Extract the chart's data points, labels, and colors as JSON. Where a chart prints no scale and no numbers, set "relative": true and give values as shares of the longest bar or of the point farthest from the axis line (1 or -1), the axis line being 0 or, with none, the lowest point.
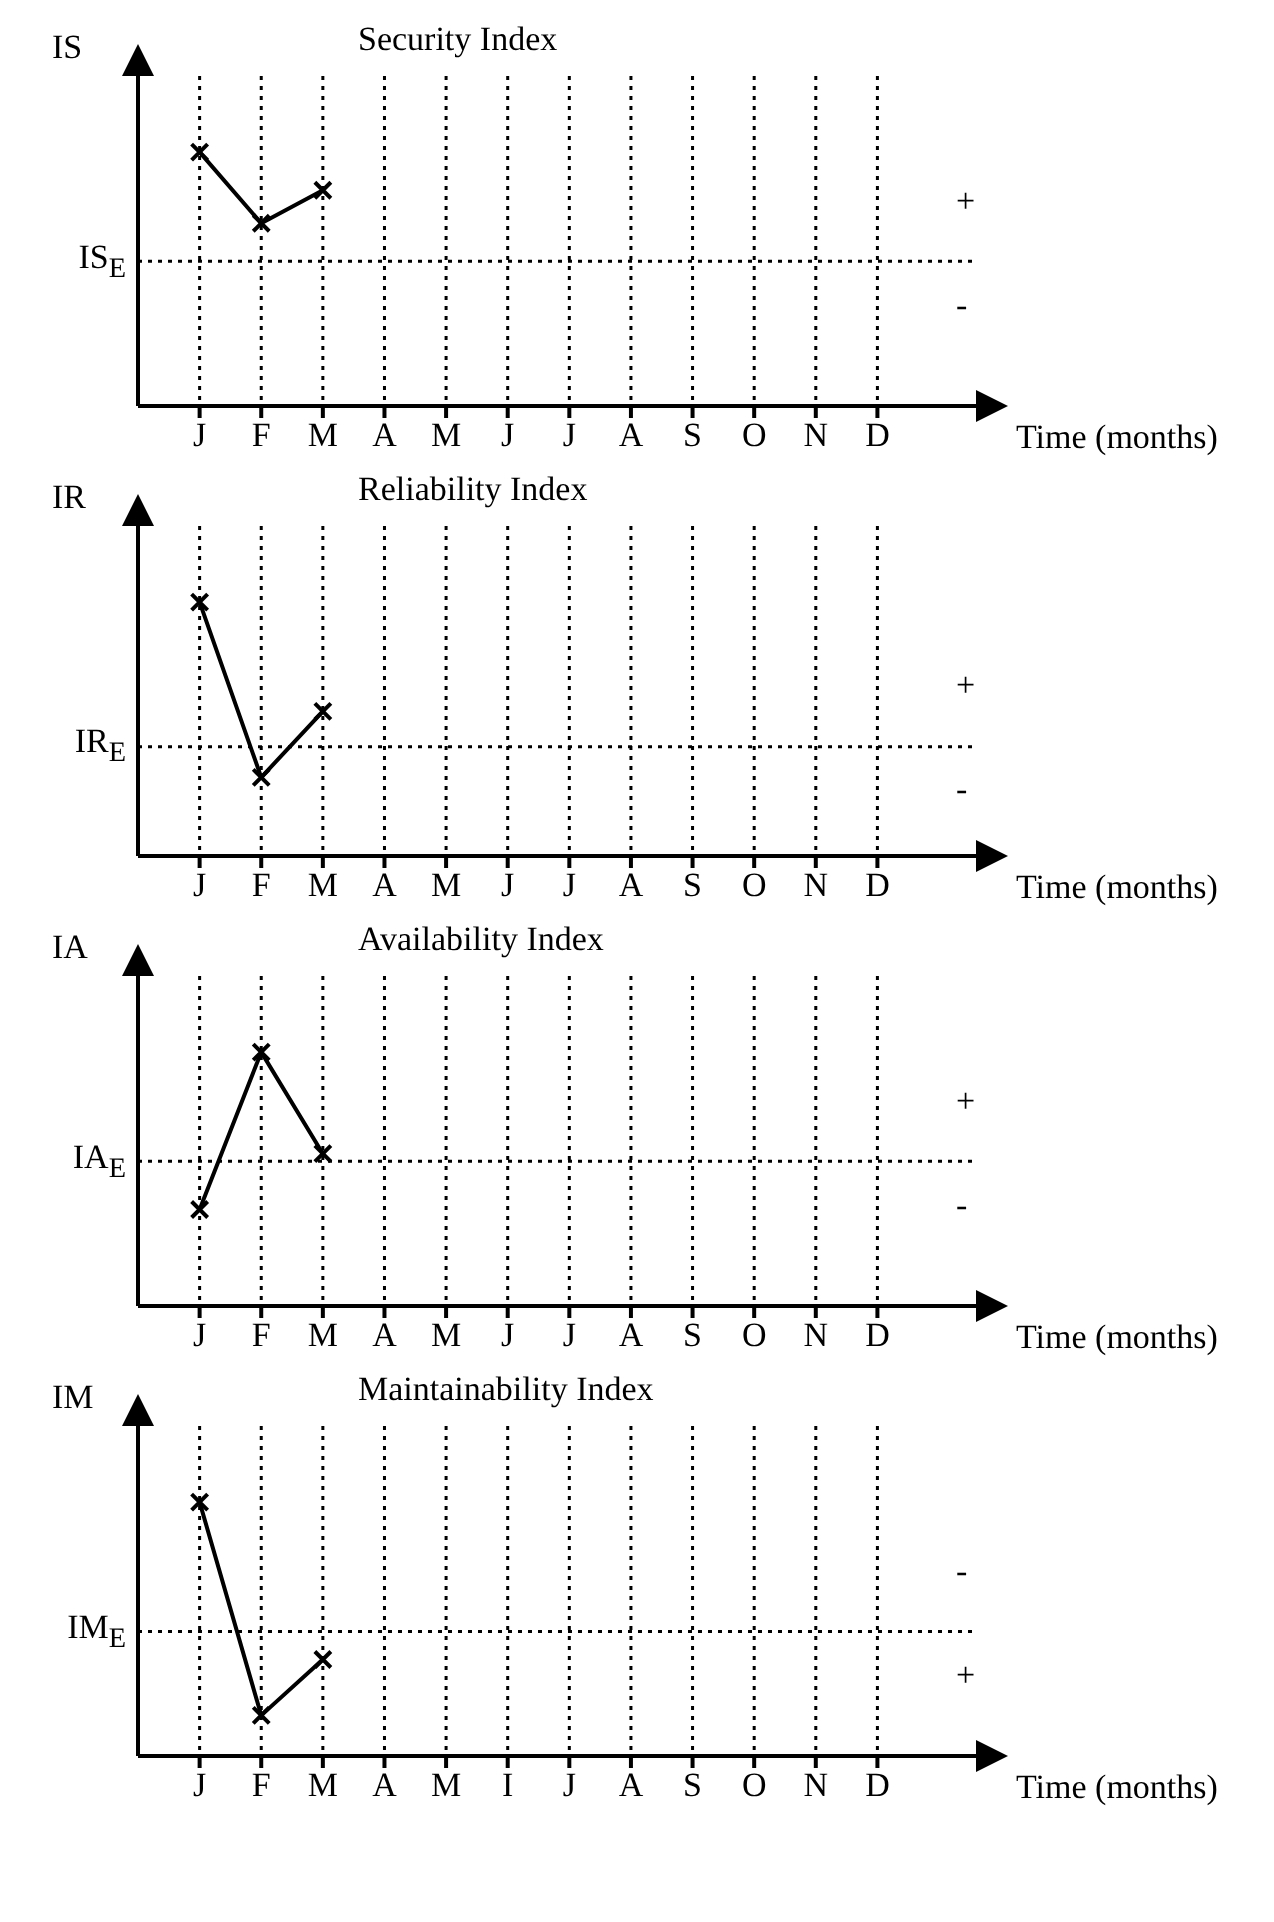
{
  "chart_data": [
    {
      "type": "line",
      "title": "Security Index",
      "ylabel": "IS",
      "xlabel": "Time (months)",
      "relative": true,
      "categories": [
        "J",
        "F",
        "M",
        "A",
        "M",
        "J",
        "J",
        "A",
        "S",
        "O",
        "N",
        "D"
      ],
      "series": [
        {
          "color": "#000000",
          "values": [
            1,
            0.72,
            0.85,
            null,
            null,
            null,
            null,
            null,
            null,
            null,
            null,
            null
          ]
        }
      ],
      "ref_lines": [
        {
          "axis": "y",
          "value": 0.57,
          "label": "IS$_{E}$",
          "line_style": "dotted"
        }
      ],
      "annotations": [
        "+",
        "-"
      ],
      "grid": "x",
      "marker": "cross",
      "line_style": "solid"
    },
    {
      "type": "line",
      "title": "Reliability Index",
      "ylabel": "IR",
      "xlabel": "Time (months)",
      "relative": true,
      "categories": [
        "J",
        "F",
        "M",
        "A",
        "M",
        "J",
        "J",
        "A",
        "S",
        "O",
        "N",
        "D"
      ],
      "series": [
        {
          "color": "#000000",
          "values": [
            1,
            0.31,
            0.57,
            null,
            null,
            null,
            null,
            null,
            null,
            null,
            null,
            null
          ]
        }
      ],
      "ref_lines": [
        {
          "axis": "y",
          "value": 0.43,
          "label": "IR$_{E}$",
          "line_style": "dotted"
        }
      ],
      "annotations": [
        "+",
        "-"
      ],
      "grid": "x",
      "marker": "cross",
      "line_style": "solid"
    },
    {
      "type": "line",
      "title": "Availability Index",
      "ylabel": "IA",
      "xlabel": "Time (months)",
      "relative": true,
      "categories": [
        "J",
        "F",
        "M",
        "A",
        "M",
        "J",
        "J",
        "A",
        "S",
        "O",
        "N",
        "D"
      ],
      "series": [
        {
          "color": "#000000",
          "values": [
            0.38,
            1,
            0.6,
            null,
            null,
            null,
            null,
            null,
            null,
            null,
            null,
            null
          ]
        }
      ],
      "ref_lines": [
        {
          "axis": "y",
          "value": 0.57,
          "label": "IA$_{E}$",
          "line_style": "dotted"
        }
      ],
      "annotations": [
        "+",
        "-"
      ],
      "grid": "x",
      "marker": "cross",
      "line_style": "solid"
    },
    {
      "type": "line",
      "title": "Maintainability Index",
      "ylabel": "IM",
      "xlabel": "Time (months)",
      "relative": true,
      "categories": [
        "J",
        "F",
        "M",
        "A",
        "M",
        "I",
        "J",
        "A",
        "S",
        "O",
        "N",
        "D"
      ],
      "series": [
        {
          "color": "#000000",
          "values": [
            1,
            0.16,
            0.38,
            null,
            null,
            null,
            null,
            null,
            null,
            null,
            null,
            null
          ]
        }
      ],
      "ref_lines": [
        {
          "axis": "y",
          "value": 0.49,
          "label": "IM$_{E}$",
          "line_style": "dotted"
        }
      ],
      "annotations": [
        "-",
        "+"
      ],
      "grid": "x",
      "marker": "cross",
      "line_style": "solid"
    }
  ]
}
